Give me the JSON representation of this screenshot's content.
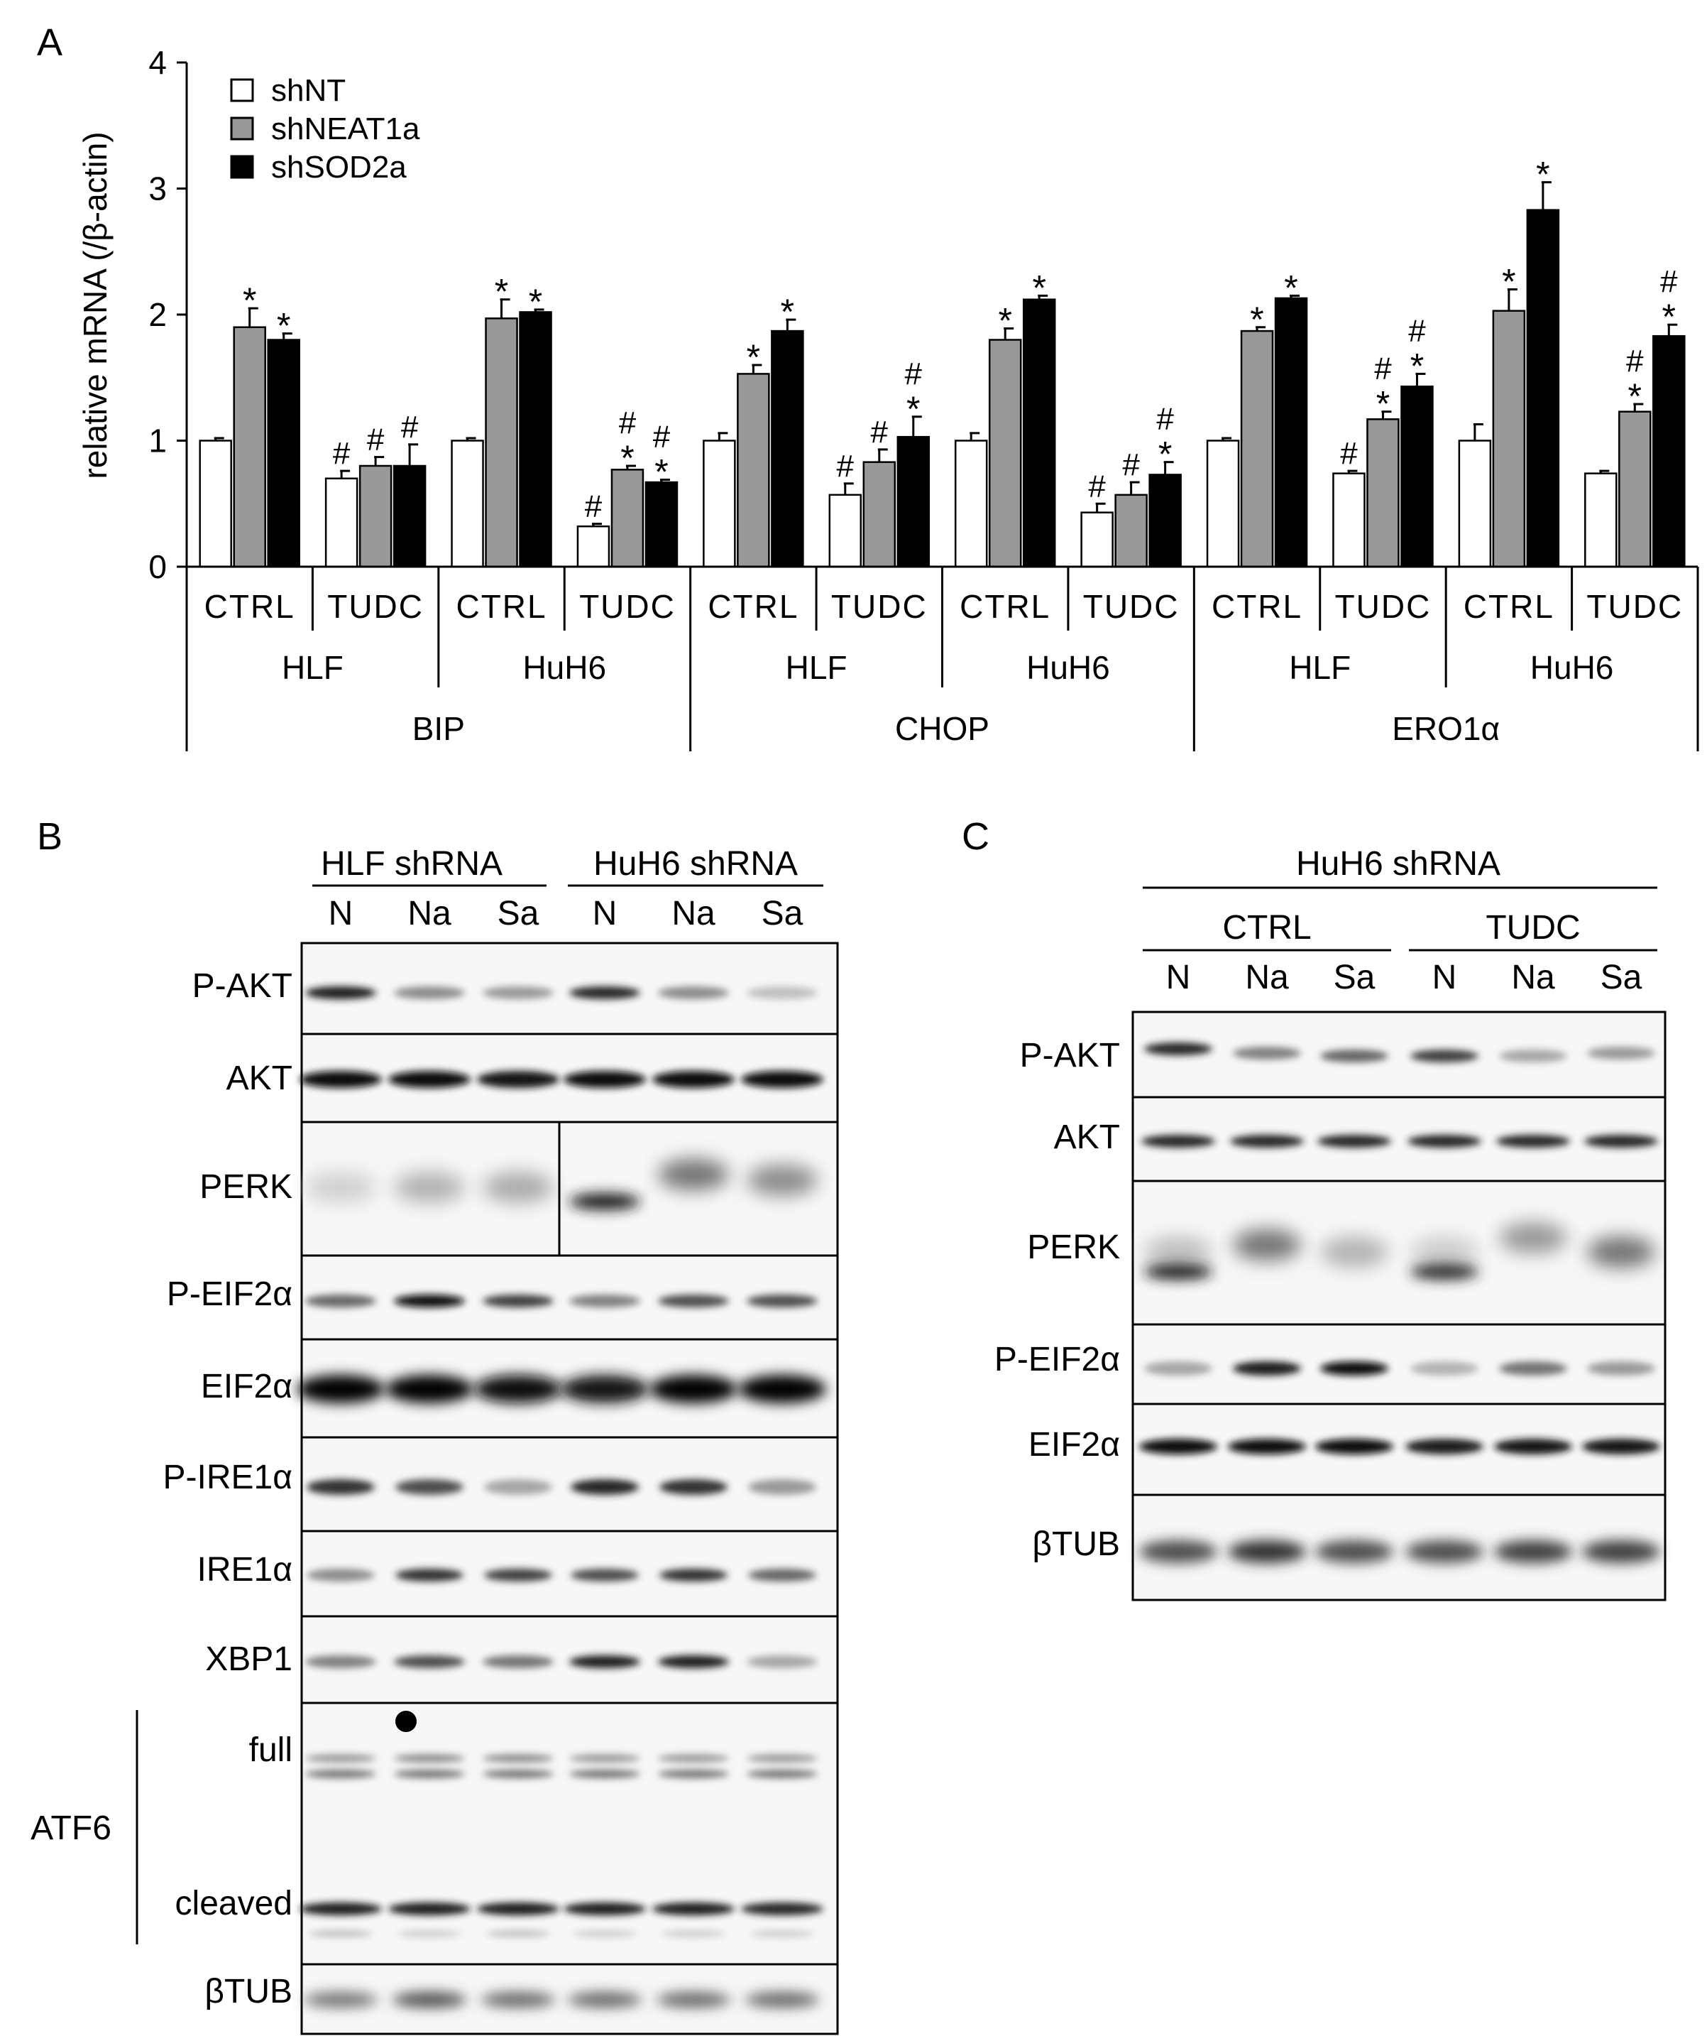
{
  "panels": {
    "a": "A",
    "b": "B",
    "c": "C"
  },
  "chart_data": {
    "type": "bar",
    "ylabel": "relative mRNA (/β-actin)",
    "ylim": [
      0,
      4
    ],
    "yticks": [
      "0",
      "1",
      "2",
      "3",
      "4"
    ],
    "legend": {
      "position": "top-left",
      "entries": [
        {
          "name": "shNT",
          "color": "#ffffff"
        },
        {
          "name": "shNEAT1a",
          "color": "#999999"
        },
        {
          "name": "shSOD2a",
          "color": "#000000"
        }
      ]
    },
    "series": [
      {
        "name": "shNT",
        "color": "#ffffff",
        "values": [
          1.0,
          0.7,
          1.0,
          0.32,
          1.0,
          0.57,
          1.0,
          0.43,
          1.0,
          0.74,
          1.0,
          0.74
        ],
        "errors": [
          0.02,
          0.06,
          0.02,
          0.02,
          0.06,
          0.09,
          0.06,
          0.07,
          0.02,
          0.02,
          0.13,
          0.02
        ]
      },
      {
        "name": "shNEAT1a",
        "color": "#999999",
        "values": [
          1.9,
          0.8,
          1.97,
          0.77,
          1.53,
          0.83,
          1.8,
          0.57,
          1.87,
          1.17,
          2.03,
          1.23
        ],
        "errors": [
          0.15,
          0.07,
          0.15,
          0.03,
          0.07,
          0.1,
          0.09,
          0.1,
          0.03,
          0.06,
          0.17,
          0.06
        ]
      },
      {
        "name": "shSOD2a",
        "color": "#000000",
        "values": [
          1.8,
          0.8,
          2.02,
          0.67,
          1.87,
          1.03,
          2.12,
          0.73,
          2.13,
          1.43,
          2.83,
          1.83
        ],
        "errors": [
          0.05,
          0.17,
          0.02,
          0.02,
          0.09,
          0.16,
          0.03,
          0.1,
          0.02,
          0.1,
          0.22,
          0.09
        ]
      }
    ],
    "markers": [
      [
        "",
        "*",
        "*"
      ],
      [
        "#",
        "#",
        "#"
      ],
      [
        "",
        "*",
        "*"
      ],
      [
        "#",
        "#*",
        "#*"
      ],
      [
        "",
        "*",
        "*"
      ],
      [
        "#",
        "#",
        "#*"
      ],
      [
        "",
        "*",
        "*"
      ],
      [
        "#",
        "#",
        "#*"
      ],
      [
        "",
        "*",
        "*"
      ],
      [
        "#",
        "#*",
        "#*"
      ],
      [
        "",
        "*",
        "*"
      ],
      [
        "",
        "#*",
        "#*"
      ]
    ],
    "treatments": [
      "CTRL",
      "TUDC",
      "CTRL",
      "TUDC",
      "CTRL",
      "TUDC",
      "CTRL",
      "TUDC",
      "CTRL",
      "TUDC",
      "CTRL",
      "TUDC"
    ],
    "cell_lines": [
      "HLF",
      "HuH6",
      "HLF",
      "HuH6",
      "HLF",
      "HuH6"
    ],
    "genes": [
      "BIP",
      "CHOP",
      "ERO1α"
    ]
  },
  "blot_b": {
    "groups": [
      "HLF shRNA",
      "HuH6 shRNA"
    ],
    "lanes": [
      "N",
      "Na",
      "Sa",
      "N",
      "Na",
      "Sa"
    ],
    "rows": [
      "P-AKT",
      "AKT",
      "PERK",
      "P-EIF2α",
      "EIF2α",
      "P-IRE1α",
      "IRE1α",
      "XBP1",
      "full",
      "cleaved",
      "βTUB"
    ],
    "atf6_label": "ATF6"
  },
  "blot_c": {
    "title": "HuH6 shRNA",
    "groups": [
      "CTRL",
      "TUDC"
    ],
    "lanes": [
      "N",
      "Na",
      "Sa",
      "N",
      "Na",
      "Sa"
    ],
    "rows": [
      "P-AKT",
      "AKT",
      "PERK",
      "P-EIF2α",
      "EIF2α",
      "βTUB"
    ]
  }
}
